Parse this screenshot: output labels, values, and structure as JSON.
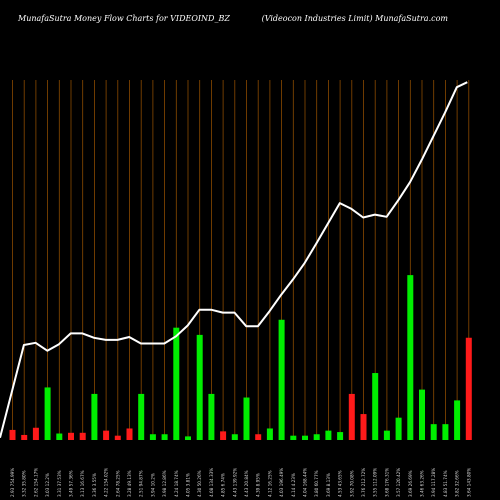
{
  "header": {
    "left": "MunafaSutra  Money Flow  Charts for VIDEOIND_BZ",
    "right": "(Videocon  Industries Limit) MunafaSutra.com"
  },
  "colors": {
    "background": "#000000",
    "grid": "#8a4a00",
    "line": "#ffffff",
    "up": "#00ee00",
    "down": "#ff1a1a"
  },
  "chart_data": {
    "type": "bar",
    "grid": "vertical",
    "series": [
      {
        "kind": "line",
        "values": [
          0.6,
          26.4,
          27.0,
          24.8,
          26.6,
          29.6,
          29.6,
          28.4,
          27.8,
          27.8,
          28.6,
          26.8,
          26.8,
          26.8,
          28.8,
          31.8,
          36.2,
          36.2,
          35.4,
          35.4,
          31.6,
          31.6,
          35.8,
          40.4,
          44.6,
          49.2,
          54.6,
          60.2,
          65.8,
          64.2,
          61.8,
          62.6,
          62.0,
          66.6,
          71.6,
          77.8,
          84.4,
          91.0,
          98.0,
          99.4
        ]
      },
      {
        "kind": "bars",
        "values": [
          2.8,
          1.4,
          3.4,
          14.6,
          1.8,
          2.0,
          2.0,
          12.8,
          2.6,
          1.2,
          3.2,
          12.8,
          1.6,
          1.6,
          31.2,
          1.0,
          29.2,
          12.8,
          2.4,
          1.6,
          11.8,
          1.6,
          3.2,
          33.4,
          1.2,
          1.2,
          1.6,
          2.6,
          2.2,
          12.8,
          7.2,
          18.6,
          2.6,
          6.2,
          45.8,
          14.0,
          4.4,
          4.4,
          11.0,
          28.4
        ],
        "direction": [
          "down",
          "down",
          "down",
          "up",
          "up",
          "down",
          "down",
          "up",
          "down",
          "down",
          "down",
          "up",
          "up",
          "up",
          "up",
          "up",
          "up",
          "up",
          "down",
          "up",
          "up",
          "down",
          "up",
          "up",
          "up",
          "up",
          "up",
          "up",
          "up",
          "down",
          "down",
          "up",
          "up",
          "up",
          "up",
          "up",
          "up",
          "up",
          "up",
          "down"
        ]
      }
    ],
    "ylim": [
      0,
      100
    ],
    "categories": [
      "2.93 754.99%",
      "3.32 35.80%",
      "2.62 154.17%",
      "3.03 12.2%",
      "3.31 37.53%",
      "3.49 57.36%",
      "3.13 16.67%",
      "3.36 3.55%",
      "4.22 154.02%",
      "2.64 78.25%",
      "3.28 49.13%",
      "2.51 94.87%",
      "3.94 10.2%",
      "3.98 12.86%",
      "4.24 18.74%",
      "4.05 3.81%",
      "4.30 50.26%",
      "4.08 134.33%",
      "4.85 6.74%",
      "4.43 139.92%",
      "4.43 20.84%",
      "4.39 8.95%",
      "4.12 16.25%",
      "4.03 196.49%",
      "4.14 4.23%",
      "4.04 168.44%",
      "3.80 60.77%",
      "3.69 8.13%",
      "4.53 43.65%",
      "3.92 70.08%",
      "3.76 212.72%",
      "3.55 112.09%",
      "3.68 176.31%",
      "3.57 120.42%",
      "3.69 26.69%",
      "3.46 63.26%",
      "3.94 117.28%",
      "4.83 51.74%",
      "3.82 32.66%",
      "3.64 143.80%"
    ]
  }
}
